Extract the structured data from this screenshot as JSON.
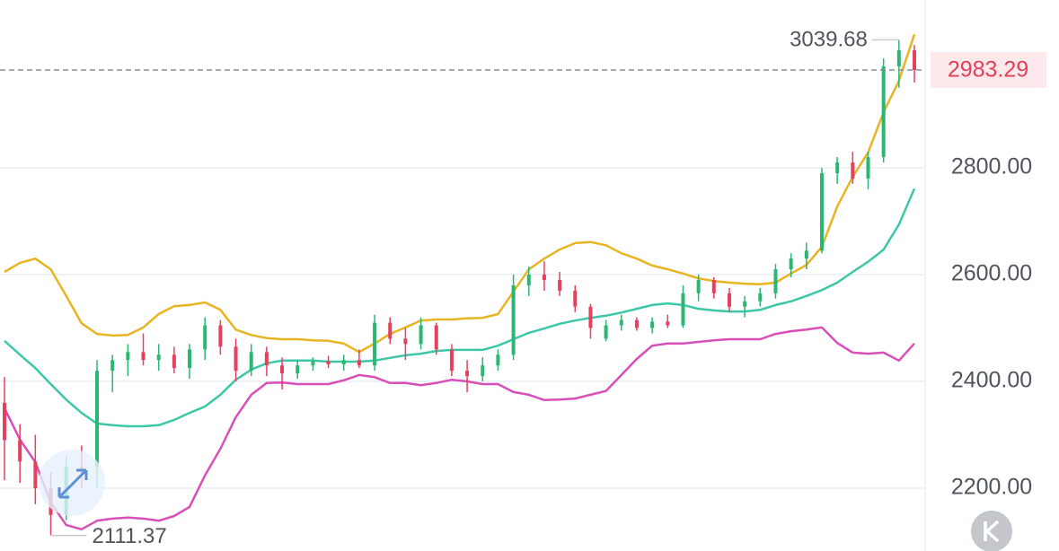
{
  "chart_data": {
    "type": "candlestick",
    "up_color": "#2bb673",
    "down_color": "#e5405e",
    "ylim": [
      2082.4,
      3114.3
    ],
    "yticks": [
      {
        "value": 2800,
        "label": "2800.00"
      },
      {
        "value": 2600,
        "label": "2600.00"
      },
      {
        "value": 2400,
        "label": "2400.00"
      },
      {
        "value": 2200,
        "label": "2200.00"
      }
    ],
    "grid": true,
    "open": [
      2360,
      2290,
      2250,
      2200,
      2150,
      2240,
      2240,
      2420,
      2440,
      2455,
      2440,
      2450,
      2425,
      2460,
      2505,
      2465,
      2420,
      2455,
      2430,
      2415,
      2430,
      2438,
      2432,
      2440,
      2430,
      2510,
      2480,
      2470,
      2505,
      2460,
      2420,
      2410,
      2430,
      2450,
      2580,
      2600,
      2590,
      2570,
      2540,
      2480,
      2505,
      2515,
      2500,
      2512,
      2505,
      2565,
      2590,
      2565,
      2540,
      2550,
      2565,
      2610,
      2630,
      2645,
      2790,
      2810,
      2780,
      2820,
      2990,
      3020
    ],
    "high": [
      2408,
      2320,
      2300,
      2230,
      2260,
      2280,
      2440,
      2450,
      2470,
      2490,
      2470,
      2465,
      2470,
      2520,
      2515,
      2480,
      2470,
      2465,
      2445,
      2440,
      2445,
      2448,
      2450,
      2460,
      2525,
      2520,
      2500,
      2520,
      2510,
      2470,
      2440,
      2445,
      2460,
      2600,
      2615,
      2625,
      2605,
      2580,
      2545,
      2515,
      2525,
      2520,
      2520,
      2525,
      2580,
      2600,
      2595,
      2575,
      2560,
      2575,
      2620,
      2640,
      2660,
      2800,
      2820,
      2830,
      2830,
      3005,
      3039.68,
      3030
    ],
    "low": [
      2215,
      2210,
      2170,
      2111.37,
      2140,
      2200,
      2200,
      2380,
      2410,
      2430,
      2420,
      2415,
      2405,
      2440,
      2450,
      2400,
      2410,
      2410,
      2385,
      2405,
      2420,
      2425,
      2420,
      2425,
      2420,
      2470,
      2440,
      2460,
      2450,
      2410,
      2380,
      2400,
      2420,
      2440,
      2560,
      2570,
      2560,
      2530,
      2480,
      2475,
      2495,
      2495,
      2490,
      2500,
      2500,
      2550,
      2555,
      2530,
      2520,
      2540,
      2555,
      2595,
      2610,
      2640,
      2770,
      2770,
      2760,
      2810,
      2950,
      2960
    ],
    "close": [
      2290,
      2250,
      2200,
      2150,
      2240,
      2230,
      2420,
      2440,
      2455,
      2440,
      2450,
      2425,
      2460,
      2505,
      2465,
      2420,
      2455,
      2430,
      2415,
      2430,
      2438,
      2432,
      2440,
      2430,
      2510,
      2480,
      2470,
      2505,
      2460,
      2420,
      2410,
      2430,
      2450,
      2580,
      2600,
      2590,
      2570,
      2540,
      2500,
      2505,
      2515,
      2500,
      2512,
      2505,
      2565,
      2590,
      2565,
      2540,
      2550,
      2565,
      2610,
      2630,
      2645,
      2790,
      2810,
      2780,
      2820,
      2990,
      3020,
      2983.29
    ],
    "bands": [
      {
        "color": "#e8b422",
        "values": [
          2605,
          2622,
          2630,
          2610,
          2560,
          2509,
          2489,
          2486,
          2487,
          2501,
          2526,
          2541,
          2543,
          2548,
          2534,
          2497,
          2487,
          2481,
          2479,
          2479,
          2477,
          2476,
          2471,
          2455,
          2471,
          2489,
          2501,
          2514,
          2516,
          2516,
          2518,
          2519,
          2526,
          2568,
          2610,
          2630,
          2647,
          2659,
          2661,
          2655,
          2640,
          2630,
          2617,
          2610,
          2602,
          2593,
          2588,
          2585,
          2583,
          2582,
          2585,
          2602,
          2618,
          2652,
          2728,
          2783,
          2829,
          2904,
          2963,
          3050
        ]
      },
      {
        "color": "#3cc7a8",
        "values": [
          2476,
          2450,
          2425,
          2395,
          2366,
          2341,
          2321,
          2318,
          2316,
          2316,
          2318,
          2328,
          2341,
          2353,
          2375,
          2403,
          2422,
          2434,
          2439,
          2439,
          2439,
          2437,
          2437,
          2437,
          2439,
          2444,
          2449,
          2452,
          2457,
          2459,
          2459,
          2459,
          2467,
          2479,
          2491,
          2499,
          2508,
          2514,
          2519,
          2523,
          2529,
          2536,
          2543,
          2546,
          2543,
          2536,
          2533,
          2531,
          2531,
          2534,
          2543,
          2550,
          2560,
          2571,
          2585,
          2605,
          2624,
          2647,
          2694,
          2761
        ]
      },
      {
        "color": "#d94fb8",
        "values": [
          2350,
          2291,
          2249,
          2173,
          2131,
          2123,
          2139,
          2143,
          2145,
          2143,
          2139,
          2148,
          2165,
          2224,
          2274,
          2333,
          2375,
          2397,
          2398,
          2395,
          2395,
          2395,
          2402,
          2412,
          2408,
          2397,
          2397,
          2393,
          2397,
          2403,
          2400,
          2395,
          2395,
          2380,
          2375,
          2365,
          2366,
          2368,
          2375,
          2382,
          2412,
          2442,
          2467,
          2471,
          2471,
          2474,
          2477,
          2479,
          2479,
          2479,
          2489,
          2494,
          2497,
          2501,
          2472,
          2454,
          2452,
          2454,
          2439,
          2471
        ]
      }
    ]
  }
}
